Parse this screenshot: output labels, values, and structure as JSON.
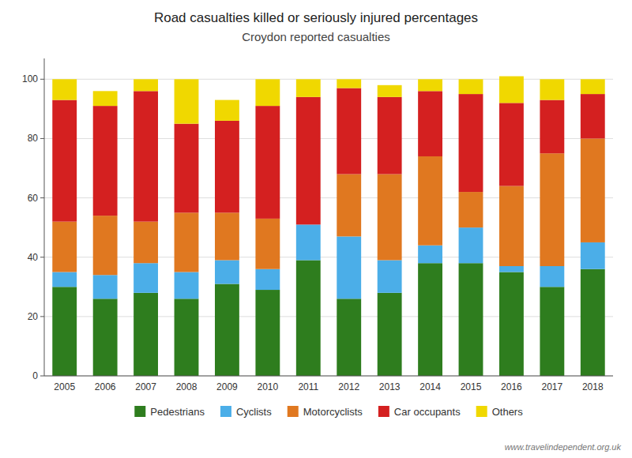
{
  "chart_data": {
    "type": "bar",
    "title": "Road casualties killed or seriously injured percentages",
    "subtitle": "Croydon reported casualties",
    "categories": [
      "2005",
      "2006",
      "2007",
      "2008",
      "2009",
      "2010",
      "2011",
      "2012",
      "2013",
      "2014",
      "2015",
      "2016",
      "2017",
      "2018"
    ],
    "series": [
      {
        "name": "Pedestrians",
        "color": "#2e7d1e",
        "values": [
          30,
          26,
          28,
          26,
          31,
          29,
          39,
          26,
          28,
          38,
          38,
          35,
          30,
          36
        ]
      },
      {
        "name": "Cyclists",
        "color": "#4baee8",
        "values": [
          5,
          8,
          10,
          9,
          8,
          7,
          12,
          21,
          11,
          6,
          12,
          2,
          7,
          9
        ]
      },
      {
        "name": "Motorcyclists",
        "color": "#e07820",
        "values": [
          17,
          20,
          14,
          20,
          16,
          17,
          0,
          21,
          29,
          30,
          12,
          27,
          38,
          35
        ]
      },
      {
        "name": "Car occupants",
        "color": "#d42020",
        "values": [
          41,
          37,
          44,
          30,
          31,
          38,
          43,
          29,
          26,
          22,
          33,
          28,
          18,
          15
        ]
      },
      {
        "name": "Others",
        "color": "#f0d800",
        "values": [
          7,
          5,
          4,
          15,
          7,
          9,
          6,
          3,
          4,
          4,
          5,
          9,
          7,
          5
        ]
      }
    ],
    "ylim": [
      0,
      107
    ],
    "yticks": [
      0,
      20,
      40,
      60,
      80,
      100
    ],
    "grid": true,
    "stacked": true,
    "legend": "bottom",
    "annotations": [
      "www.travelindependent.org.uk"
    ]
  }
}
